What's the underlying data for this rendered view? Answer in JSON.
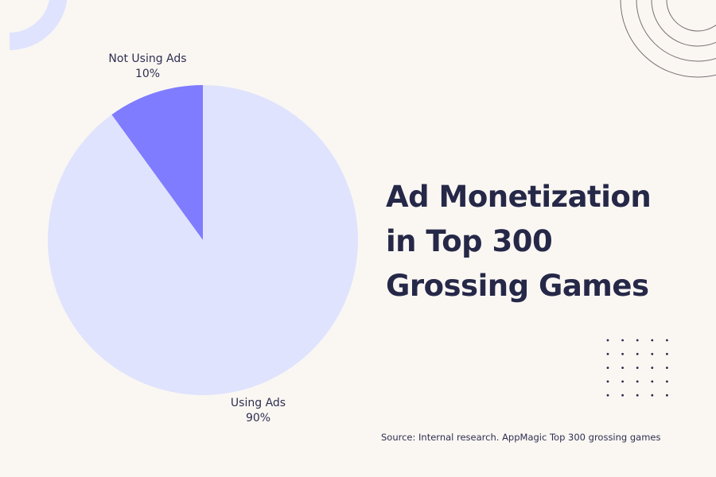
{
  "chart_data": {
    "type": "pie",
    "title_lines": [
      "Ad Monetization",
      "in Top 300",
      "Grossing Games"
    ],
    "slices": [
      {
        "label": "Not Using Ads",
        "value": 10,
        "value_label": "10%",
        "color": "#7f7cff"
      },
      {
        "label": "Using Ads",
        "value": 90,
        "value_label": "90%",
        "color": "#dfe3fd"
      }
    ],
    "start": "12 o'clock, counterclockwise",
    "source": "Source: Internal research. AppMagic Top 300 grossing games"
  },
  "colors": {
    "background": "#faf7f3",
    "text": "#262848",
    "decor_arc": "#dfe3fd",
    "decor_lines": "#7a6e70"
  }
}
